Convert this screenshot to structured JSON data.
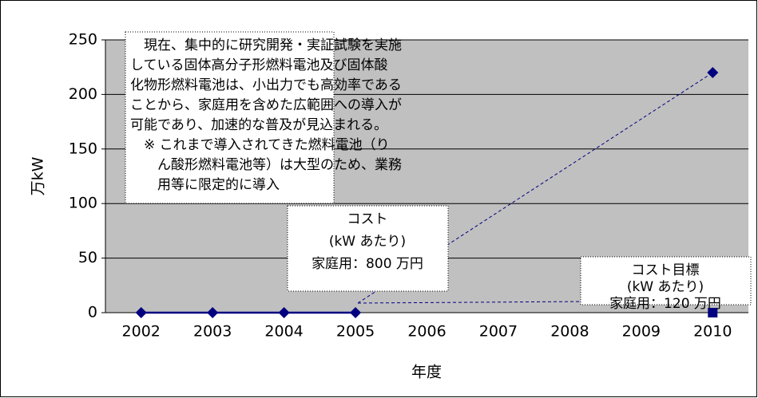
{
  "chart_data": {
    "type": "line",
    "y_label": "万kW",
    "x_label": "年度",
    "categories": [
      "2002",
      "2003",
      "2004",
      "2005",
      "2006",
      "2007",
      "2008",
      "2009",
      "2010"
    ],
    "series": [
      {
        "color": "#000080",
        "marker": "diamond",
        "values": [
          0,
          0,
          0,
          0,
          null,
          null,
          null,
          null,
          220
        ]
      },
      {
        "color": "#000080",
        "marker": "square",
        "values": [
          null,
          null,
          null,
          null,
          null,
          null,
          null,
          null,
          0
        ]
      }
    ],
    "ylim": [
      0,
      250
    ],
    "yticks": [
      0,
      50,
      100,
      150,
      200,
      250
    ],
    "grid": true,
    "annotations": [
      {
        "lines": [
          "　現在、集中的に研究開発・実証試験を実施",
          "している固体高分子形燃料電池及び固体酸",
          "化物形燃料電池は、小出力でも高効率である",
          "ことから、家庭用を含めた広範囲への導入が",
          "可能であり、加速的な普及が見込まれる。",
          "　※ これまで導入されてきた燃料電池（り",
          "　　ん酸形燃料電池等）は大型のため、業務",
          "　　用等に限定的に導入"
        ]
      },
      {
        "lines": [
          "コスト",
          "(kW あたり)",
          "家庭用：800 万円"
        ]
      },
      {
        "lines": [
          "コスト目標",
          "(kW あたり)",
          "家庭用：120 万円"
        ]
      }
    ]
  }
}
